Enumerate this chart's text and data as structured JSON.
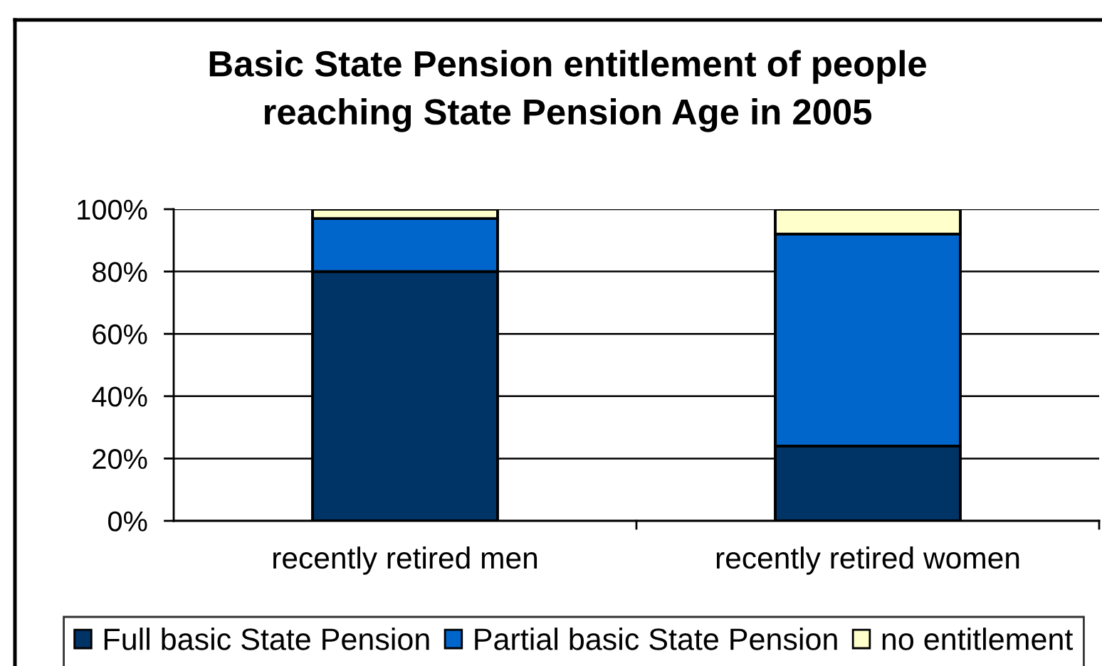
{
  "chart_data": {
    "type": "bar",
    "title": "Basic State Pension entitlement of people\nreaching State Pension Age in 2005",
    "categories": [
      "recently retired men",
      "recently retired women"
    ],
    "stacked": true,
    "series": [
      {
        "name": "Full basic State Pension",
        "color": "#003366",
        "values": [
          80,
          24
        ]
      },
      {
        "name": "Partial basic State Pension",
        "color": "#0066cc",
        "values": [
          17,
          68
        ]
      },
      {
        "name": "no entitlement",
        "color": "#ffffcc",
        "values": [
          3,
          8
        ]
      }
    ],
    "ylim": [
      0,
      100
    ],
    "yticks": [
      {
        "value": 0,
        "label": "0%"
      },
      {
        "value": 20,
        "label": "20%"
      },
      {
        "value": 40,
        "label": "40%"
      },
      {
        "value": 60,
        "label": "60%"
      },
      {
        "value": 80,
        "label": "80%"
      },
      {
        "value": 100,
        "label": "100%"
      }
    ],
    "grid": "y",
    "legend": "bottom"
  }
}
